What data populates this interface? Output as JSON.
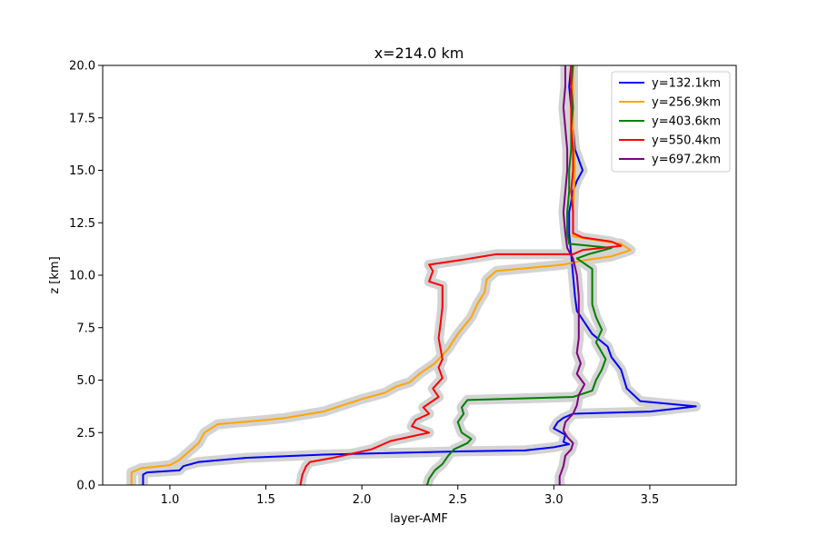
{
  "chart_data": {
    "type": "line",
    "title": "x=214.0 km",
    "xlabel": "layer-AMF",
    "ylabel": "z [km]",
    "xlim": [
      0.65,
      3.95
    ],
    "ylim": [
      0,
      20
    ],
    "xticks": [
      "1.0",
      "1.5",
      "2.0",
      "2.5",
      "3.0",
      "3.5"
    ],
    "yticks": [
      "0.0",
      "2.5",
      "5.0",
      "7.5",
      "10.0",
      "12.5",
      "15.0",
      "17.5",
      "20.0"
    ],
    "legend_position": "top-right",
    "uncertainty_color": "#d3d3d3",
    "series": [
      {
        "name": "y=132.1km",
        "color": "#0000ff",
        "points": [
          [
            0.86,
            0.0
          ],
          [
            0.86,
            0.5
          ],
          [
            0.88,
            0.6
          ],
          [
            1.05,
            0.7
          ],
          [
            1.07,
            0.9
          ],
          [
            1.15,
            1.1
          ],
          [
            1.4,
            1.3
          ],
          [
            1.8,
            1.45
          ],
          [
            2.5,
            1.6
          ],
          [
            2.85,
            1.65
          ],
          [
            3.0,
            1.8
          ],
          [
            3.08,
            1.95
          ],
          [
            3.05,
            2.05
          ],
          [
            3.06,
            2.4
          ],
          [
            3.0,
            2.7
          ],
          [
            3.02,
            3.0
          ],
          [
            3.05,
            3.2
          ],
          [
            3.1,
            3.4
          ],
          [
            3.5,
            3.5
          ],
          [
            3.74,
            3.75
          ],
          [
            3.45,
            4.0
          ],
          [
            3.38,
            4.6
          ],
          [
            3.35,
            5.5
          ],
          [
            3.3,
            6.1
          ],
          [
            3.28,
            6.6
          ],
          [
            3.2,
            7.2
          ],
          [
            3.12,
            8.3
          ],
          [
            3.11,
            9.0
          ],
          [
            3.1,
            10.0
          ],
          [
            3.09,
            11.0
          ],
          [
            3.08,
            12.0
          ],
          [
            3.08,
            13.0
          ],
          [
            3.1,
            14.0
          ],
          [
            3.12,
            14.5
          ],
          [
            3.15,
            15.0
          ],
          [
            3.13,
            15.5
          ],
          [
            3.11,
            16.0
          ],
          [
            3.1,
            17.0
          ],
          [
            3.09,
            18.0
          ],
          [
            3.08,
            19.0
          ],
          [
            3.09,
            20.0
          ]
        ]
      },
      {
        "name": "y=256.9km",
        "color": "#ffa500",
        "points": [
          [
            0.8,
            0.0
          ],
          [
            0.8,
            0.6
          ],
          [
            0.85,
            0.8
          ],
          [
            1.0,
            0.95
          ],
          [
            1.05,
            1.2
          ],
          [
            1.1,
            1.6
          ],
          [
            1.15,
            2.0
          ],
          [
            1.18,
            2.5
          ],
          [
            1.25,
            2.9
          ],
          [
            1.5,
            3.1
          ],
          [
            1.6,
            3.2
          ],
          [
            1.8,
            3.5
          ],
          [
            1.9,
            3.8
          ],
          [
            2.0,
            4.1
          ],
          [
            2.12,
            4.4
          ],
          [
            2.18,
            4.7
          ],
          [
            2.25,
            4.9
          ],
          [
            2.3,
            5.3
          ],
          [
            2.38,
            5.8
          ],
          [
            2.45,
            6.5
          ],
          [
            2.5,
            7.2
          ],
          [
            2.57,
            8.0
          ],
          [
            2.6,
            8.6
          ],
          [
            2.64,
            9.2
          ],
          [
            2.65,
            9.8
          ],
          [
            2.7,
            10.2
          ],
          [
            3.05,
            10.5
          ],
          [
            3.15,
            10.7
          ],
          [
            3.3,
            10.9
          ],
          [
            3.4,
            11.2
          ],
          [
            3.35,
            11.5
          ],
          [
            3.2,
            11.7
          ],
          [
            3.1,
            11.85
          ],
          [
            3.1,
            13.0
          ],
          [
            3.11,
            15.0
          ],
          [
            3.1,
            17.0
          ],
          [
            3.1,
            19.0
          ],
          [
            3.1,
            20.0
          ]
        ]
      },
      {
        "name": "y=403.6km",
        "color": "#008000",
        "points": [
          [
            2.34,
            0.0
          ],
          [
            2.35,
            0.3
          ],
          [
            2.38,
            0.7
          ],
          [
            2.42,
            1.0
          ],
          [
            2.45,
            1.4
          ],
          [
            2.48,
            1.7
          ],
          [
            2.55,
            2.0
          ],
          [
            2.57,
            2.2
          ],
          [
            2.52,
            2.5
          ],
          [
            2.5,
            3.0
          ],
          [
            2.53,
            3.4
          ],
          [
            2.52,
            3.7
          ],
          [
            2.55,
            4.05
          ],
          [
            3.1,
            4.2
          ],
          [
            3.2,
            4.5
          ],
          [
            3.22,
            5.0
          ],
          [
            3.25,
            5.5
          ],
          [
            3.27,
            6.0
          ],
          [
            3.22,
            6.8
          ],
          [
            3.25,
            7.4
          ],
          [
            3.22,
            8.0
          ],
          [
            3.2,
            8.6
          ],
          [
            3.2,
            9.3
          ],
          [
            3.2,
            9.8
          ],
          [
            3.2,
            10.3
          ],
          [
            3.12,
            10.8
          ],
          [
            3.18,
            11.0
          ],
          [
            3.3,
            11.3
          ],
          [
            3.08,
            11.5
          ],
          [
            3.07,
            12.0
          ],
          [
            3.07,
            13.0
          ],
          [
            3.08,
            14.0
          ],
          [
            3.08,
            15.0
          ],
          [
            3.09,
            16.0
          ],
          [
            3.09,
            17.0
          ],
          [
            3.1,
            18.0
          ],
          [
            3.09,
            19.0
          ],
          [
            3.1,
            20.0
          ]
        ]
      },
      {
        "name": "y=550.4km",
        "color": "#ff0000",
        "points": [
          [
            1.68,
            0.0
          ],
          [
            1.69,
            0.5
          ],
          [
            1.71,
            0.9
          ],
          [
            1.73,
            1.1
          ],
          [
            1.85,
            1.3
          ],
          [
            1.95,
            1.5
          ],
          [
            2.05,
            1.7
          ],
          [
            2.15,
            2.1
          ],
          [
            2.25,
            2.3
          ],
          [
            2.35,
            2.5
          ],
          [
            2.26,
            2.8
          ],
          [
            2.28,
            3.1
          ],
          [
            2.35,
            3.4
          ],
          [
            2.32,
            3.7
          ],
          [
            2.4,
            4.2
          ],
          [
            2.37,
            4.6
          ],
          [
            2.42,
            5.1
          ],
          [
            2.4,
            5.6
          ],
          [
            2.42,
            6.0
          ],
          [
            2.41,
            6.5
          ],
          [
            2.4,
            7.0
          ],
          [
            2.41,
            7.7
          ],
          [
            2.42,
            8.5
          ],
          [
            2.42,
            9.5
          ],
          [
            2.35,
            9.7
          ],
          [
            2.37,
            10.2
          ],
          [
            2.35,
            10.5
          ],
          [
            2.5,
            10.7
          ],
          [
            2.7,
            11.0
          ],
          [
            3.1,
            11.0
          ],
          [
            3.15,
            11.2
          ],
          [
            3.35,
            11.4
          ],
          [
            3.3,
            11.6
          ],
          [
            3.15,
            11.8
          ],
          [
            3.1,
            12.0
          ],
          [
            3.1,
            13.0
          ],
          [
            3.09,
            14.0
          ],
          [
            3.1,
            15.0
          ],
          [
            3.1,
            16.0
          ],
          [
            3.09,
            17.0
          ],
          [
            3.09,
            18.0
          ],
          [
            3.09,
            19.0
          ],
          [
            3.09,
            20.0
          ]
        ]
      },
      {
        "name": "y=697.2km",
        "color": "#800080",
        "points": [
          [
            3.03,
            0.0
          ],
          [
            3.03,
            0.4
          ],
          [
            3.05,
            0.9
          ],
          [
            3.06,
            1.4
          ],
          [
            3.09,
            1.7
          ],
          [
            3.1,
            2.0
          ],
          [
            3.07,
            2.3
          ],
          [
            3.05,
            2.6
          ],
          [
            3.06,
            3.0
          ],
          [
            3.1,
            3.4
          ],
          [
            3.12,
            3.8
          ],
          [
            3.13,
            4.3
          ],
          [
            3.16,
            4.8
          ],
          [
            3.12,
            5.3
          ],
          [
            3.14,
            5.8
          ],
          [
            3.12,
            6.3
          ],
          [
            3.13,
            7.0
          ],
          [
            3.13,
            8.0
          ],
          [
            3.13,
            9.0
          ],
          [
            3.12,
            10.0
          ],
          [
            3.1,
            10.8
          ],
          [
            3.07,
            11.3
          ],
          [
            3.06,
            12.0
          ],
          [
            3.05,
            13.0
          ],
          [
            3.06,
            14.0
          ],
          [
            3.07,
            15.0
          ],
          [
            3.07,
            16.0
          ],
          [
            3.06,
            17.0
          ],
          [
            3.05,
            18.0
          ],
          [
            3.06,
            19.0
          ],
          [
            3.06,
            20.0
          ]
        ]
      }
    ]
  }
}
